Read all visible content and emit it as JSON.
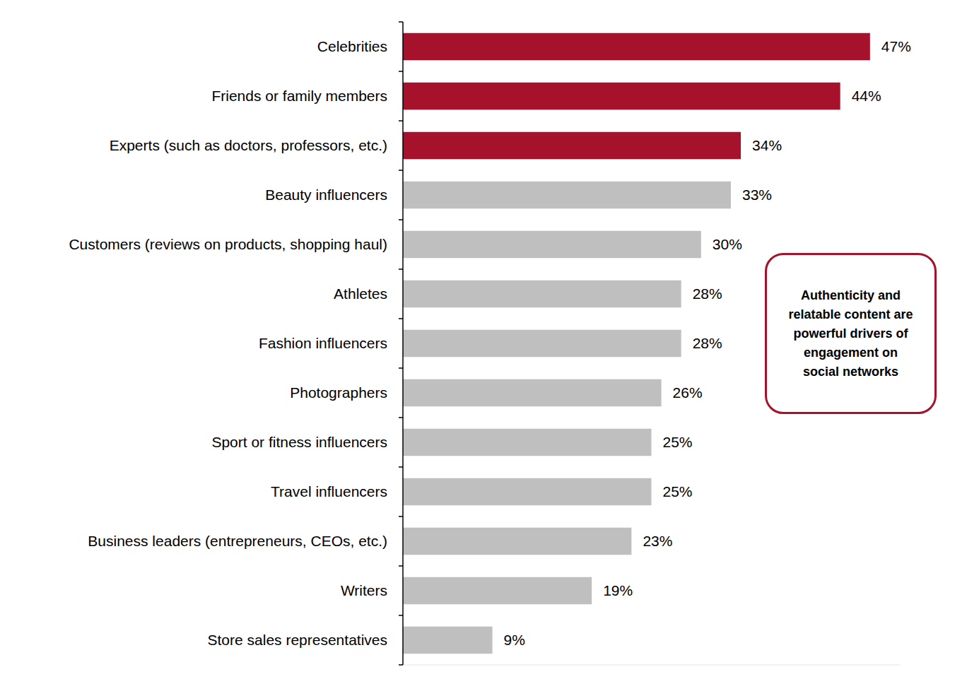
{
  "chart_data": {
    "type": "bar",
    "orientation": "horizontal",
    "categories": [
      "Celebrities",
      "Friends or family members",
      "Experts (such as doctors, professors, etc.)",
      "Beauty influencers",
      "Customers (reviews on products, shopping haul)",
      "Athletes",
      "Fashion influencers",
      "Photographers",
      "Sport or fitness influencers",
      "Travel influencers",
      "Business leaders (entrepreneurs, CEOs, etc.)",
      "Writers",
      "Store sales representatives"
    ],
    "values": [
      47,
      44,
      34,
      33,
      30,
      28,
      28,
      26,
      25,
      25,
      23,
      19,
      9
    ],
    "value_labels": [
      "47%",
      "44%",
      "34%",
      "33%",
      "30%",
      "28%",
      "28%",
      "26%",
      "25%",
      "25%",
      "23%",
      "19%",
      "9%"
    ],
    "colors": [
      "#a6112c",
      "#a6112c",
      "#a6112c",
      "#bfbfbf",
      "#bfbfbf",
      "#bfbfbf",
      "#bfbfbf",
      "#bfbfbf",
      "#bfbfbf",
      "#bfbfbf",
      "#bfbfbf",
      "#bfbfbf",
      "#bfbfbf"
    ],
    "xlim": [
      0,
      50
    ],
    "data_labels": true,
    "tick_labels": "y",
    "grid": false,
    "annotations": [
      "Authenticity and relatable content are powerful drivers of engagement on social networks"
    ]
  }
}
